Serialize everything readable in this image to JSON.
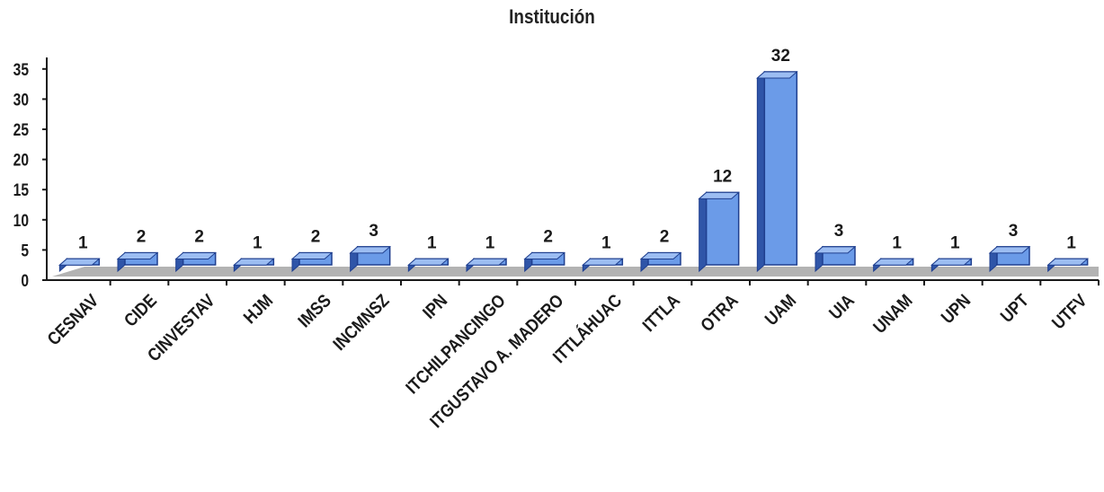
{
  "chart_data": {
    "type": "bar",
    "title": "Institución",
    "categories": [
      "CESNAV",
      "CIDE",
      "CINVESTAV",
      "HJM",
      "IMSS",
      "INCMNSZ",
      "IPN",
      "ITCHILPANCINGO",
      "ITGUSTAVO A. MADERO",
      "ITTLÁHUAC",
      "ITTLA",
      "OTRA",
      "UAM",
      "UIA",
      "UNAM",
      "UPN",
      "UPT",
      "UTFV"
    ],
    "values": [
      1,
      2,
      2,
      1,
      2,
      3,
      1,
      1,
      2,
      1,
      2,
      12,
      32,
      3,
      1,
      1,
      3,
      1
    ],
    "data_labels": [
      "1",
      "2",
      "2",
      "1",
      "2",
      "3",
      "1",
      "1",
      "2",
      "1",
      "2",
      "12",
      "32",
      "3",
      "1",
      "1",
      "3",
      "1"
    ],
    "y_ticks": [
      0,
      5,
      10,
      15,
      20,
      25,
      30,
      35
    ],
    "ylim": [
      0,
      35
    ],
    "xlabel": "",
    "ylabel": "",
    "grid": false,
    "legend": "none",
    "style": "3d-column",
    "colors": {
      "bar_front": "#6b9be8",
      "bar_side": "#2f55a8",
      "bar_top": "#9cbdf2",
      "bar_outline": "#1f3f8f",
      "floor": "#b3b3b3",
      "axis": "#1a1a1a"
    }
  }
}
